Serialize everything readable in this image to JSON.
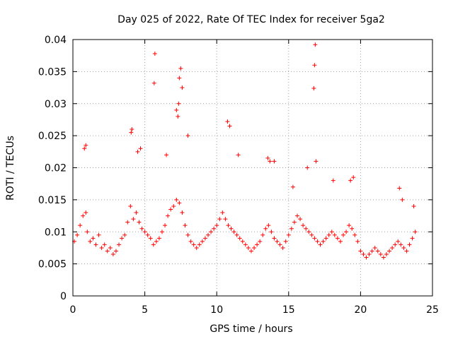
{
  "chart_data": {
    "type": "scatter",
    "title": "Day 025 of 2022, Rate Of TEC Index for receiver 5ga2",
    "xlabel": "GPS time / hours",
    "ylabel": "ROTI / TECUs",
    "xlim": [
      0,
      25
    ],
    "ylim": [
      0,
      0.04
    ],
    "xticks": [
      0,
      5,
      10,
      15,
      20,
      25
    ],
    "yticks": [
      0,
      0.005,
      0.01,
      0.015,
      0.02,
      0.025,
      0.03,
      0.035,
      0.04
    ],
    "xtick_labels": [
      "0",
      "5",
      "10",
      "15",
      "20",
      "25"
    ],
    "ytick_labels": [
      "0",
      "0.005",
      "0.01",
      "0.015",
      "0.02",
      "0.025",
      "0.03",
      "0.035",
      "0.04"
    ],
    "grid": true,
    "marker": "plus",
    "color": "#ff0000",
    "series": [
      {
        "name": "ROTI",
        "x": [
          0.1,
          0.3,
          0.5,
          0.7,
          0.9,
          1.0,
          1.2,
          1.4,
          1.6,
          1.8,
          2.0,
          2.2,
          2.4,
          2.6,
          2.8,
          3.0,
          3.2,
          3.4,
          3.6,
          3.8,
          4.0,
          4.2,
          4.4,
          4.6,
          4.8,
          5.0,
          5.2,
          5.4,
          5.6,
          5.8,
          6.0,
          6.2,
          6.4,
          6.6,
          6.8,
          7.0,
          7.2,
          7.4,
          7.6,
          7.8,
          8.0,
          8.2,
          8.4,
          8.6,
          8.8,
          9.0,
          9.2,
          9.4,
          9.6,
          9.8,
          10.0,
          10.2,
          10.4,
          10.6,
          10.8,
          11.0,
          11.2,
          11.4,
          11.6,
          11.8,
          12.0,
          12.2,
          12.4,
          12.6,
          12.8,
          13.0,
          13.2,
          13.4,
          13.6,
          13.8,
          14.0,
          14.2,
          14.4,
          14.6,
          14.8,
          15.0,
          15.2,
          15.4,
          15.6,
          15.8,
          16.0,
          16.2,
          16.4,
          16.6,
          16.8,
          17.0,
          17.2,
          17.4,
          17.6,
          17.8,
          18.0,
          18.2,
          18.4,
          18.6,
          18.8,
          19.0,
          19.2,
          19.4,
          19.6,
          19.8,
          20.0,
          20.2,
          20.4,
          20.6,
          20.8,
          21.0,
          21.2,
          21.4,
          21.6,
          21.8,
          22.0,
          22.2,
          22.4,
          22.6,
          22.8,
          23.0,
          23.2,
          23.4,
          23.6,
          23.8,
          4.05,
          4.1,
          5.7,
          5.65,
          7.3,
          7.4,
          7.5,
          7.6,
          7.2,
          7.35,
          16.85,
          16.8,
          16.75,
          16.9,
          10.75,
          10.9,
          13.55,
          13.7,
          19.3,
          19.5,
          0.8,
          0.9,
          4.5,
          4.7,
          6.5,
          8.0,
          11.5,
          14.0,
          15.3,
          16.3,
          18.1,
          22.7,
          22.9,
          23.7
        ],
        "y": [
          0.0085,
          0.0095,
          0.011,
          0.0125,
          0.013,
          0.01,
          0.0085,
          0.009,
          0.008,
          0.0095,
          0.0075,
          0.008,
          0.007,
          0.0075,
          0.0065,
          0.007,
          0.008,
          0.009,
          0.0095,
          0.0115,
          0.014,
          0.012,
          0.013,
          0.0115,
          0.0105,
          0.01,
          0.0095,
          0.009,
          0.008,
          0.0085,
          0.009,
          0.01,
          0.011,
          0.0125,
          0.0135,
          0.014,
          0.015,
          0.0145,
          0.013,
          0.011,
          0.0095,
          0.0085,
          0.008,
          0.0075,
          0.008,
          0.0085,
          0.009,
          0.0095,
          0.01,
          0.0105,
          0.011,
          0.012,
          0.013,
          0.012,
          0.011,
          0.0105,
          0.01,
          0.0095,
          0.009,
          0.0085,
          0.008,
          0.0075,
          0.007,
          0.0075,
          0.008,
          0.0085,
          0.0095,
          0.0105,
          0.011,
          0.01,
          0.009,
          0.0085,
          0.008,
          0.0075,
          0.0085,
          0.0095,
          0.0105,
          0.0115,
          0.0125,
          0.012,
          0.011,
          0.0105,
          0.01,
          0.0095,
          0.009,
          0.0085,
          0.008,
          0.0085,
          0.009,
          0.0095,
          0.01,
          0.0095,
          0.009,
          0.0085,
          0.0095,
          0.01,
          0.011,
          0.0105,
          0.0095,
          0.0085,
          0.007,
          0.0065,
          0.006,
          0.0065,
          0.007,
          0.0075,
          0.007,
          0.0065,
          0.006,
          0.0065,
          0.007,
          0.0075,
          0.008,
          0.0085,
          0.008,
          0.0075,
          0.007,
          0.008,
          0.009,
          0.01,
          0.0255,
          0.026,
          0.0378,
          0.0332,
          0.028,
          0.034,
          0.0355,
          0.0325,
          0.029,
          0.03,
          0.0392,
          0.036,
          0.0324,
          0.021,
          0.0272,
          0.0265,
          0.0215,
          0.021,
          0.018,
          0.0185,
          0.023,
          0.0235,
          0.0225,
          0.023,
          0.022,
          0.025,
          0.022,
          0.021,
          0.017,
          0.02,
          0.018,
          0.0168,
          0.015,
          0.014
        ]
      }
    ]
  }
}
